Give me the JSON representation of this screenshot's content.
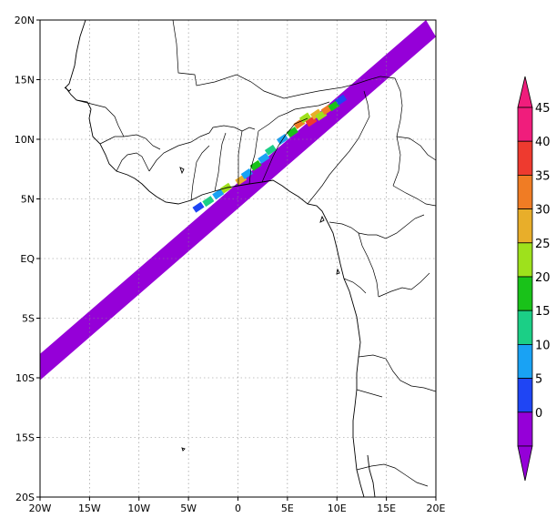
{
  "chart_data": {
    "type": "heatmap",
    "title": "",
    "xlabel": "",
    "ylabel": "",
    "xlim": [
      -20,
      20
    ],
    "ylim": [
      -20,
      20
    ],
    "x_ticks": [
      {
        "value": -20,
        "label": "20W"
      },
      {
        "value": -15,
        "label": "15W"
      },
      {
        "value": -10,
        "label": "10W"
      },
      {
        "value": -5,
        "label": "5W"
      },
      {
        "value": 0,
        "label": "0"
      },
      {
        "value": 5,
        "label": "5E"
      },
      {
        "value": 10,
        "label": "10E"
      },
      {
        "value": 15,
        "label": "15E"
      },
      {
        "value": 20,
        "label": "20E"
      }
    ],
    "y_ticks": [
      {
        "value": 20,
        "label": "20N"
      },
      {
        "value": 15,
        "label": "15N"
      },
      {
        "value": 10,
        "label": "10N"
      },
      {
        "value": 5,
        "label": "5N"
      },
      {
        "value": 0,
        "label": "EQ"
      },
      {
        "value": -5,
        "label": "5S"
      },
      {
        "value": -10,
        "label": "10S"
      },
      {
        "value": -15,
        "label": "15S"
      },
      {
        "value": -20,
        "label": "20S"
      }
    ],
    "grid": true,
    "swath": {
      "edge_a": [
        [
          -20,
          -8
        ],
        [
          19,
          20
        ]
      ],
      "edge_b": [
        [
          -20,
          -10.2
        ],
        [
          20,
          18.6
        ]
      ],
      "background_value": 0
    },
    "rain_cells": [
      {
        "lon": -4.0,
        "lat": 4.3,
        "value": 8
      },
      {
        "lon": -3.0,
        "lat": 4.8,
        "value": 18
      },
      {
        "lon": -2.0,
        "lat": 5.4,
        "value": 12
      },
      {
        "lon": -1.2,
        "lat": 5.9,
        "value": 25
      },
      {
        "lon": 0.3,
        "lat": 6.6,
        "value": 30
      },
      {
        "lon": 0.9,
        "lat": 7.1,
        "value": 14
      },
      {
        "lon": 1.8,
        "lat": 7.8,
        "value": 20
      },
      {
        "lon": 2.6,
        "lat": 8.4,
        "value": 10
      },
      {
        "lon": 3.3,
        "lat": 9.1,
        "value": 16
      },
      {
        "lon": 4.5,
        "lat": 10.0,
        "value": 12
      },
      {
        "lon": 5.5,
        "lat": 10.6,
        "value": 22
      },
      {
        "lon": 6.2,
        "lat": 11.3,
        "value": 35
      },
      {
        "lon": 6.8,
        "lat": 11.8,
        "value": 28
      },
      {
        "lon": 7.4,
        "lat": 11.5,
        "value": 42
      },
      {
        "lon": 7.9,
        "lat": 12.1,
        "value": 32
      },
      {
        "lon": 8.4,
        "lat": 12.0,
        "value": 25
      },
      {
        "lon": 9.0,
        "lat": 12.5,
        "value": 38
      },
      {
        "lon": 9.7,
        "lat": 12.8,
        "value": 20
      },
      {
        "lon": 10.4,
        "lat": 13.3,
        "value": 6
      }
    ],
    "colorbar": {
      "labels": [
        "0",
        "5",
        "10",
        "15",
        "20",
        "25",
        "30",
        "35",
        "40",
        "45"
      ],
      "colors": [
        "#9500d8",
        "#1f45f4",
        "#19a2f4",
        "#1bcf86",
        "#19c219",
        "#9ee11c",
        "#e8ae2a",
        "#f07c24",
        "#ee3a2f",
        "#f01d7c"
      ],
      "top_color": "#f01d7c",
      "bottom_color": "#9500d8"
    }
  }
}
